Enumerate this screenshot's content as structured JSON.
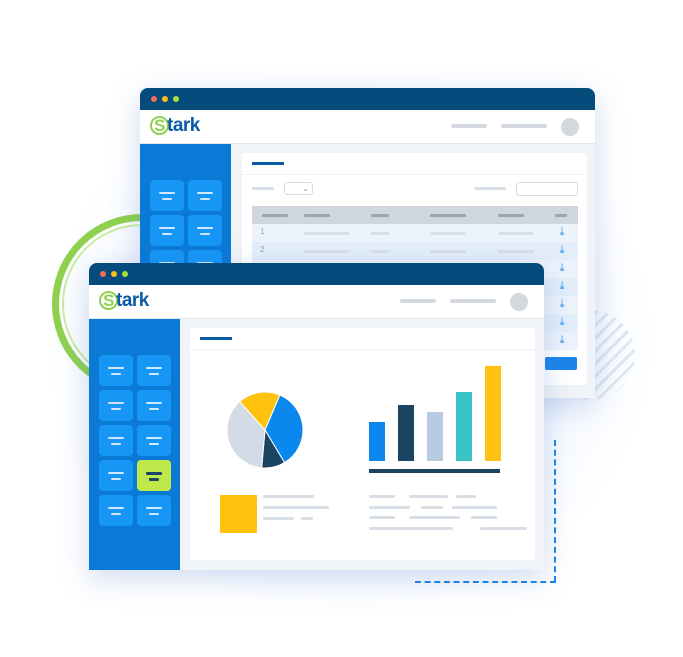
{
  "app": {
    "logo_text": "tark",
    "logo_letter": "S"
  },
  "back_window": {
    "table": {
      "rows": [
        {
          "num": "1"
        },
        {
          "num": "2"
        },
        {
          "num": ""
        },
        {
          "num": ""
        },
        {
          "num": ""
        },
        {
          "num": ""
        },
        {
          "num": ""
        }
      ]
    },
    "download_icon": "download-icon"
  },
  "front_window": {
    "chart_data": [
      {
        "type": "pie",
        "values": [
          18,
          35,
          10,
          37
        ],
        "colors": [
          "#fec20f",
          "#0b88ee",
          "#1b4462",
          "#d3dbe7"
        ]
      },
      {
        "type": "bar",
        "categories": [
          "",
          "",
          "",
          "",
          ""
        ],
        "values": [
          39,
          56,
          49,
          69,
          95
        ],
        "colors": [
          "#0b88ee",
          "#1b4462",
          "#b8cbe0",
          "#39c5c5",
          "#fec20f"
        ]
      }
    ]
  },
  "colors": {
    "titlebar": "#054b7c",
    "sidebar": "#0b7ad6",
    "tile": "#1696f5",
    "active_tile": "#bfe94a",
    "accent_green": "#8fd14f"
  }
}
